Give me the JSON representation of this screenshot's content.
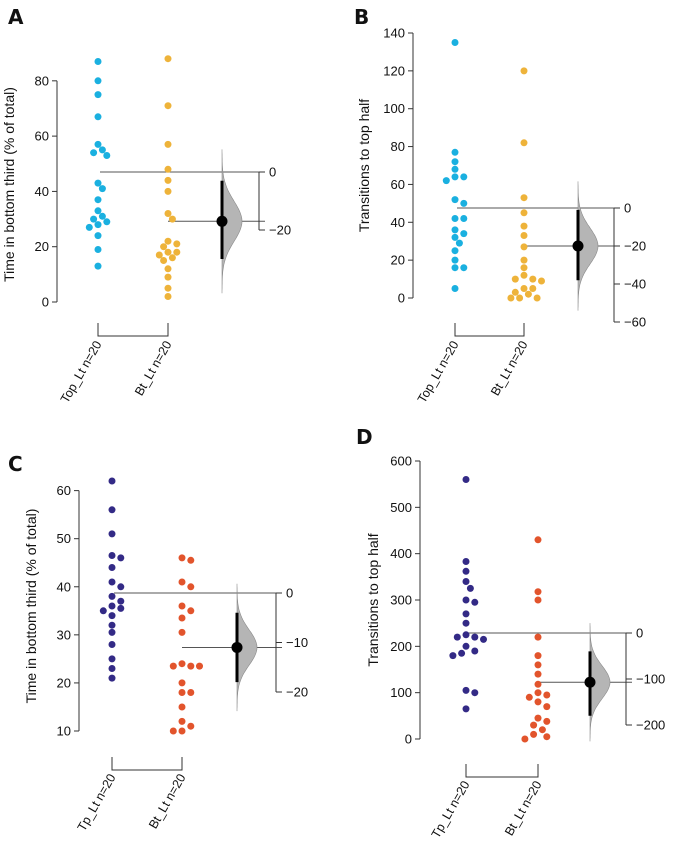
{
  "chart_data": [
    {
      "panel": "A",
      "type": "scatter",
      "subtype": "gardner-altman estimation plot",
      "ylabel": "Time in bottom third (% of total)",
      "ylim": [
        0,
        85
      ],
      "yticks": [
        0,
        20,
        40,
        60,
        80
      ],
      "categories": [
        "Top_Lt n=20",
        "Bt_Lt n=20"
      ],
      "colors": [
        "#1ab0e0",
        "#eeb33a"
      ],
      "series": [
        {
          "name": "Top_Lt n=20",
          "values": [
            87,
            80,
            75,
            67,
            57,
            55,
            54,
            53,
            43,
            41,
            37,
            33,
            31,
            30,
            29,
            28,
            27,
            24,
            19,
            13
          ]
        },
        {
          "name": "Bt_Lt n=20",
          "values": [
            88,
            71,
            57,
            48,
            44,
            40,
            32,
            30,
            22,
            21,
            20,
            18,
            18,
            17,
            16,
            15,
            12,
            9,
            5,
            2
          ]
        }
      ],
      "diff_axis": {
        "ticks": [
          0,
          -20
        ],
        "ticklabels": [
          "0",
          "−20"
        ]
      },
      "mean_difference": -17,
      "ci": [
        -30,
        -3
      ]
    },
    {
      "panel": "B",
      "type": "scatter",
      "subtype": "gardner-altman estimation plot",
      "ylabel": "Transitions to top half",
      "ylim": [
        0,
        140
      ],
      "yticks": [
        0,
        20,
        40,
        60,
        80,
        100,
        120,
        140
      ],
      "categories": [
        "Top_Lt n=20",
        "Bt_Lt n=20"
      ],
      "colors": [
        "#1ab0e0",
        "#eeb33a"
      ],
      "series": [
        {
          "name": "Top_Lt n=20",
          "values": [
            135,
            77,
            72,
            68,
            64,
            64,
            62,
            52,
            50,
            42,
            42,
            36,
            34,
            32,
            29,
            25,
            20,
            16,
            16,
            5
          ]
        },
        {
          "name": "Bt_Lt n=20",
          "values": [
            120,
            82,
            53,
            45,
            38,
            33,
            27,
            20,
            16,
            12,
            10,
            10,
            9,
            5,
            5,
            3,
            2,
            0,
            0,
            0
          ]
        }
      ],
      "diff_axis": {
        "ticks": [
          0,
          -20,
          -40,
          -60
        ],
        "ticklabels": [
          "0",
          "−20",
          "−40",
          "−60"
        ]
      },
      "mean_difference": -20,
      "ci": [
        -38,
        -1
      ]
    },
    {
      "panel": "C",
      "type": "scatter",
      "subtype": "gardner-altman estimation plot",
      "ylabel": "Time in bottom third (% of total)",
      "ylim": [
        10,
        62
      ],
      "yticks": [
        10,
        20,
        30,
        40,
        50,
        60
      ],
      "categories": [
        "Tp_Lt n=20",
        "Bt_Lt n=20"
      ],
      "colors": [
        "#332a86",
        "#e2542c"
      ],
      "series": [
        {
          "name": "Tp_Lt n=20",
          "values": [
            62,
            56,
            51,
            46.5,
            46,
            44,
            41,
            40,
            38,
            37,
            36,
            35.5,
            35,
            34,
            32,
            30.5,
            28,
            25,
            23,
            21
          ]
        },
        {
          "name": "Bt_Lt n=20",
          "values": [
            46,
            45.5,
            41,
            40,
            36,
            35,
            33.5,
            30.5,
            24,
            23.5,
            23.5,
            23.5,
            20,
            18,
            18,
            15,
            12,
            11,
            10,
            10
          ]
        }
      ],
      "diff_axis": {
        "ticks": [
          0,
          -10,
          -20
        ],
        "ticklabels": [
          "0",
          "−10",
          "−20"
        ]
      },
      "mean_difference": -11,
      "ci": [
        -18,
        -4
      ]
    },
    {
      "panel": "D",
      "type": "scatter",
      "subtype": "gardner-altman estimation plot",
      "ylabel": "Transitions to top half",
      "ylim": [
        0,
        600
      ],
      "yticks": [
        0,
        100,
        200,
        300,
        400,
        500,
        600
      ],
      "categories": [
        "Tp_Lt n=20",
        "Bt_Lt n=20"
      ],
      "colors": [
        "#332a86",
        "#e2542c"
      ],
      "series": [
        {
          "name": "Tp_Lt n=20",
          "values": [
            560,
            383,
            362,
            340,
            325,
            300,
            295,
            270,
            250,
            225,
            220,
            220,
            215,
            200,
            190,
            185,
            180,
            105,
            100,
            65
          ]
        },
        {
          "name": "Bt_Lt n=20",
          "values": [
            430,
            318,
            300,
            220,
            180,
            160,
            140,
            118,
            100,
            95,
            90,
            80,
            70,
            45,
            38,
            30,
            20,
            10,
            5,
            0
          ]
        }
      ],
      "diff_axis": {
        "ticks": [
          0,
          -100,
          -200
        ],
        "ticklabels": [
          "0",
          "−100",
          "−200"
        ]
      },
      "mean_difference": -107,
      "ci": [
        -180,
        -40
      ]
    }
  ]
}
